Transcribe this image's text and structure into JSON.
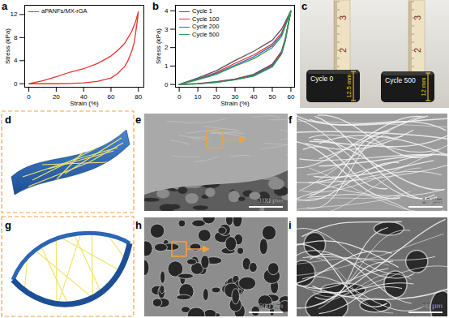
{
  "chart_data": [
    {
      "panel": "a",
      "type": "line",
      "x_label": "Strain (%)",
      "y_label": "Stress (kPa)",
      "xlim": [
        -3,
        84
      ],
      "xticks": [
        0,
        20,
        40,
        60,
        80
      ],
      "ylim": [
        -0.6,
        13.6
      ],
      "yticks": [
        0,
        4,
        8,
        12
      ],
      "legend": "upper left",
      "series": [
        {
          "name": "aPANFs/MX-rGA",
          "color": "#e8322e",
          "x": [
            0,
            10,
            20,
            30,
            40,
            50,
            60,
            65,
            70,
            75,
            78,
            80,
            79,
            77,
            75,
            72,
            70,
            65,
            60,
            50,
            40,
            30,
            20,
            10,
            0
          ],
          "values": [
            0,
            0.5,
            1.2,
            2.0,
            2.6,
            3.5,
            4.8,
            5.8,
            7.0,
            9.0,
            10.8,
            12.5,
            10.5,
            7.2,
            5.5,
            3.8,
            3.0,
            1.8,
            1.0,
            0.4,
            0.15,
            0.05,
            0,
            0,
            0
          ]
        }
      ]
    },
    {
      "panel": "b",
      "type": "line",
      "x_label": "Strain (%)",
      "y_label": "Stress (kPa)",
      "xlim": [
        -2,
        62
      ],
      "xticks": [
        0,
        10,
        20,
        30,
        40,
        50,
        60
      ],
      "ylim": [
        -0.15,
        4.3
      ],
      "yticks": [
        0,
        1,
        2,
        3,
        4
      ],
      "legend": "upper left",
      "series": [
        {
          "name": "Cycle 1",
          "color": "#555555",
          "x": [
            0,
            10,
            20,
            30,
            40,
            50,
            55,
            60,
            57,
            55,
            50,
            40,
            30,
            20,
            10,
            0
          ],
          "values": [
            0,
            0.35,
            0.75,
            1.3,
            1.8,
            2.4,
            3.0,
            4.0,
            2.5,
            1.8,
            1.1,
            0.55,
            0.3,
            0.15,
            0.05,
            0
          ]
        },
        {
          "name": "Cycle 100",
          "color": "#e8322e",
          "x": [
            0,
            10,
            20,
            30,
            40,
            50,
            55,
            60,
            57,
            55,
            50,
            40,
            30,
            20,
            10,
            0
          ],
          "values": [
            0,
            0.3,
            0.65,
            1.15,
            1.6,
            2.2,
            2.8,
            4.0,
            2.45,
            1.75,
            1.05,
            0.5,
            0.28,
            0.13,
            0.04,
            0
          ]
        },
        {
          "name": "Cycle 200",
          "color": "#3b5bd6",
          "x": [
            0,
            10,
            20,
            30,
            40,
            50,
            55,
            60,
            57,
            55,
            50,
            40,
            30,
            20,
            10,
            0
          ],
          "values": [
            0,
            0.28,
            0.6,
            1.05,
            1.5,
            2.1,
            2.7,
            4.0,
            2.4,
            1.7,
            1.0,
            0.48,
            0.26,
            0.12,
            0.03,
            0
          ]
        },
        {
          "name": "Cycle 500",
          "color": "#2e9e4a",
          "x": [
            0,
            10,
            20,
            30,
            40,
            50,
            55,
            60,
            57,
            55,
            50,
            40,
            30,
            20,
            10,
            0
          ],
          "values": [
            0,
            0.25,
            0.55,
            1.0,
            1.4,
            2.0,
            2.6,
            4.0,
            2.35,
            1.65,
            0.95,
            0.45,
            0.25,
            0.11,
            0.03,
            0
          ]
        }
      ]
    }
  ],
  "photo": {
    "panel": "c",
    "samples": [
      {
        "label": "Cycle 0",
        "height_label": "12.5 mm"
      },
      {
        "label": "Cycle 500",
        "height_label": "12 mm"
      }
    ],
    "ruler_labels": [
      "3",
      "2"
    ]
  },
  "schematics": [
    {
      "panel": "d"
    },
    {
      "panel": "g"
    }
  ],
  "micrographs": [
    {
      "panel": "e",
      "scale_bar": "100 μm"
    },
    {
      "panel": "f",
      "scale_bar": "10 μm"
    },
    {
      "panel": "h",
      "scale_bar": "500 μm"
    },
    {
      "panel": "i",
      "scale_bar": "50 μm"
    }
  ]
}
